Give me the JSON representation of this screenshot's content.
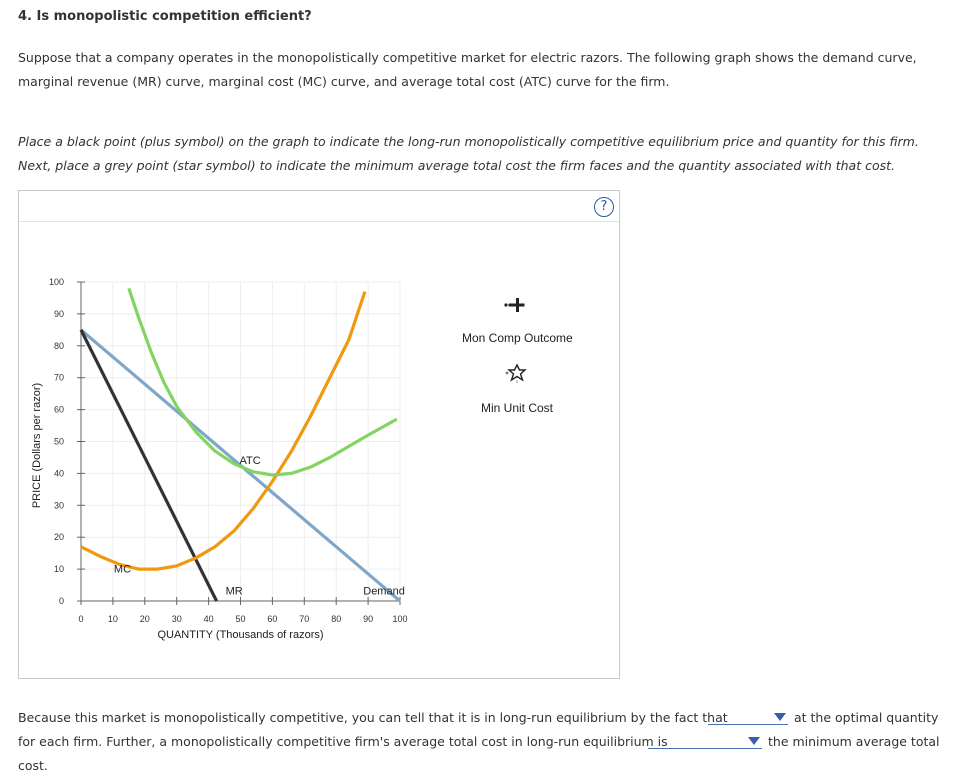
{
  "question": {
    "title": "4. Is monopolistic competition efficient?",
    "intro": "Suppose that a company operates in the monopolistically competitive market for electric razors. The following graph shows the demand curve, marginal revenue (MR) curve, marginal cost (MC) curve, and average total cost (ATC) curve for the firm.",
    "instruction": "Place a black point (plus symbol) on the graph to indicate the long-run monopolistically competitive equilibrium price and quantity for this firm. Next, place a grey point (star symbol) to indicate the minimum average total cost the firm faces and the quantity associated with that cost."
  },
  "panel": {
    "help_label": "?"
  },
  "chart_data": {
    "type": "line",
    "xlabel": "QUANTITY (Thousands of razors)",
    "ylabel": "PRICE (Dollars per razor)",
    "xlim": [
      0,
      100
    ],
    "ylim": [
      0,
      100
    ],
    "x_ticks": [
      "0",
      "10",
      "20",
      "30",
      "40",
      "50",
      "60",
      "70",
      "80",
      "90",
      "100"
    ],
    "y_ticks": [
      "0",
      "10",
      "20",
      "30",
      "40",
      "50",
      "60",
      "70",
      "80",
      "90",
      "100"
    ],
    "series": [
      {
        "name": "Demand",
        "color": "#7fa7c9",
        "points": [
          [
            0,
            85
          ],
          [
            100,
            0
          ]
        ]
      },
      {
        "name": "MR",
        "color": "#333333",
        "points": [
          [
            0,
            85
          ],
          [
            42.5,
            0
          ]
        ]
      },
      {
        "name": "MC",
        "color": "#f0980e",
        "points": [
          [
            0,
            17
          ],
          [
            6,
            14
          ],
          [
            12,
            11.5
          ],
          [
            18,
            10
          ],
          [
            24,
            10
          ],
          [
            30,
            11
          ],
          [
            36,
            13.5
          ],
          [
            42,
            17
          ],
          [
            48,
            22
          ],
          [
            54,
            29
          ],
          [
            60,
            37.5
          ],
          [
            66,
            47
          ],
          [
            72,
            58
          ],
          [
            78,
            70
          ],
          [
            84,
            82
          ],
          [
            89,
            97
          ]
        ]
      },
      {
        "name": "ATC",
        "color": "#84d462",
        "points": [
          [
            15,
            98
          ],
          [
            18,
            89
          ],
          [
            22,
            78
          ],
          [
            26,
            68.5
          ],
          [
            30,
            61
          ],
          [
            36,
            53
          ],
          [
            42,
            47
          ],
          [
            48,
            43
          ],
          [
            54,
            40.5
          ],
          [
            60,
            39.5
          ],
          [
            66,
            40
          ],
          [
            72,
            42
          ],
          [
            78,
            45
          ],
          [
            84,
            48.5
          ],
          [
            90,
            52
          ],
          [
            99,
            57
          ]
        ]
      }
    ],
    "curve_labels": [
      {
        "text": "ATC",
        "x": 53,
        "y": 43
      },
      {
        "text": "MC",
        "x": 13,
        "y": 9
      },
      {
        "text": "MR",
        "x": 48,
        "y": 2
      },
      {
        "text": "Demand",
        "x": 95,
        "y": 2
      }
    ]
  },
  "legend": {
    "items": [
      {
        "label": "Mon Comp Outcome",
        "symbol": "plus",
        "color": "#222222"
      },
      {
        "label": "Min Unit Cost",
        "symbol": "star",
        "color": "#555555"
      }
    ]
  },
  "answers": {
    "line1_before": "Because this market is monopolistically competitive, you can tell that it is in long-run equilibrium by the fact that",
    "line1_after": "at the optimal quantity",
    "line2_before": "for each firm. Further, a monopolistically competitive firm's average total cost in long-run equilibrium is",
    "line2_after": "the minimum average total",
    "line3": "cost.",
    "dropdown1_value": "",
    "dropdown2_value": ""
  }
}
